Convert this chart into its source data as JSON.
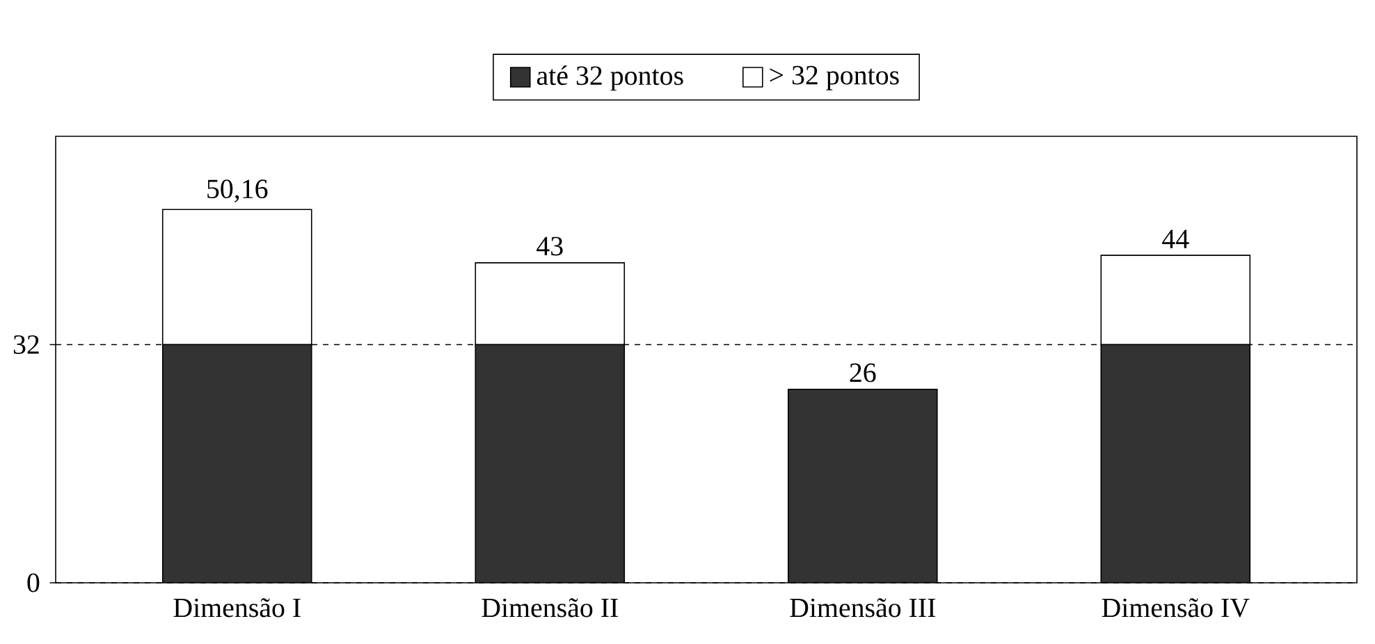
{
  "chart_data": {
    "type": "bar",
    "stacked": true,
    "categories": [
      "Dimensão I",
      "Dimensão II",
      "Dimensão III",
      "Dimensão IV"
    ],
    "series": [
      {
        "name": "até 32 pontos",
        "color": "#333333",
        "values": [
          32,
          32,
          26,
          32
        ]
      },
      {
        "name": "> 32 pontos",
        "color": "#ffffff",
        "values": [
          18.16,
          11,
          null,
          12
        ]
      }
    ],
    "totals": [
      "50,16",
      "43",
      "26",
      "44"
    ],
    "ylim": [
      0,
      60
    ],
    "yticks": [
      0,
      32
    ],
    "grid": "y",
    "legend": "top"
  }
}
